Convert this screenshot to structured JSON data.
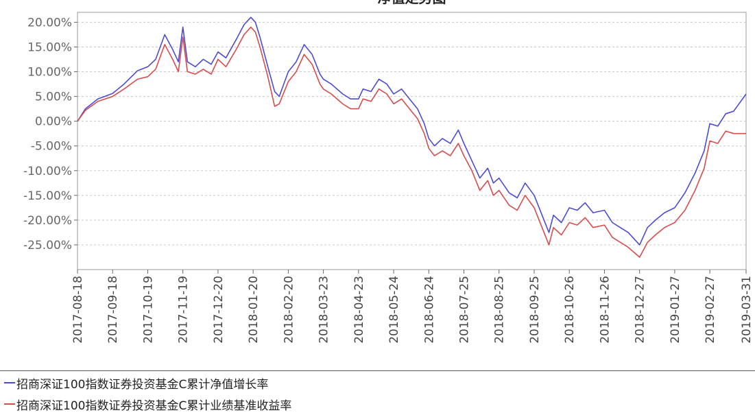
{
  "chart_data": {
    "type": "line",
    "title": "净值走势图",
    "y_unit": "%",
    "ylim": [
      -30,
      22
    ],
    "yticks": [
      20,
      15,
      10,
      5,
      0,
      -5,
      -10,
      -15,
      -20,
      -25
    ],
    "ytick_labels": [
      "20.00%",
      "15.00%",
      "10.00%",
      "5.00%",
      "0.00%",
      "-5.00%",
      "-10.00%",
      "-15.00%",
      "-20.00%",
      "-25.00%"
    ],
    "x_tick_labels": [
      "2017-08-18",
      "2017-09-18",
      "2017-10-19",
      "2017-11-19",
      "2017-12-20",
      "2018-01-20",
      "2018-02-20",
      "2018-03-23",
      "2018-04-23",
      "2018-05-24",
      "2018-06-24",
      "2018-07-25",
      "2018-08-25",
      "2018-09-25",
      "2018-10-26",
      "2018-11-26",
      "2018-12-27",
      "2019-01-27",
      "2019-02-27",
      "2019-03-31"
    ],
    "grid": true,
    "legend_position": "bottom",
    "x_dates": [
      "2017-08-18",
      "2017-08-25",
      "2017-09-05",
      "2017-09-18",
      "2017-09-28",
      "2017-10-10",
      "2017-10-19",
      "2017-10-26",
      "2017-11-03",
      "2017-11-10",
      "2017-11-15",
      "2017-11-19",
      "2017-11-23",
      "2017-11-30",
      "2017-12-07",
      "2017-12-14",
      "2017-12-20",
      "2017-12-27",
      "2018-01-05",
      "2018-01-12",
      "2018-01-18",
      "2018-01-22",
      "2018-01-26",
      "2018-02-02",
      "2018-02-08",
      "2018-02-12",
      "2018-02-20",
      "2018-02-27",
      "2018-03-06",
      "2018-03-13",
      "2018-03-20",
      "2018-03-23",
      "2018-03-30",
      "2018-04-09",
      "2018-04-16",
      "2018-04-23",
      "2018-04-27",
      "2018-05-04",
      "2018-05-11",
      "2018-05-18",
      "2018-05-24",
      "2018-05-31",
      "2018-06-07",
      "2018-06-14",
      "2018-06-20",
      "2018-06-24",
      "2018-06-29",
      "2018-07-06",
      "2018-07-13",
      "2018-07-20",
      "2018-07-25",
      "2018-08-01",
      "2018-08-08",
      "2018-08-15",
      "2018-08-20",
      "2018-08-25",
      "2018-09-03",
      "2018-09-10",
      "2018-09-17",
      "2018-09-25",
      "2018-10-08",
      "2018-10-12",
      "2018-10-19",
      "2018-10-26",
      "2018-11-02",
      "2018-11-09",
      "2018-11-16",
      "2018-11-26",
      "2018-12-03",
      "2018-12-10",
      "2018-12-17",
      "2018-12-27",
      "2019-01-03",
      "2019-01-10",
      "2019-01-18",
      "2019-01-27",
      "2019-02-05",
      "2019-02-14",
      "2019-02-22",
      "2019-02-27",
      "2019-03-06",
      "2019-03-13",
      "2019-03-20",
      "2019-03-31"
    ],
    "series": [
      {
        "name": "招商深证100指数证券投资基金C累计净值增长率",
        "color": "#4a4ad6",
        "values": [
          0.0,
          2.5,
          4.5,
          5.6,
          7.5,
          10.2,
          11.0,
          12.5,
          17.5,
          14.5,
          12.0,
          19.0,
          12.0,
          11.0,
          12.5,
          11.5,
          14.0,
          12.8,
          16.5,
          19.5,
          21.0,
          20.0,
          17.0,
          11.0,
          6.0,
          5.0,
          10.0,
          12.0,
          15.5,
          13.5,
          9.5,
          8.5,
          7.5,
          5.5,
          4.5,
          4.5,
          6.5,
          6.0,
          8.5,
          7.5,
          5.5,
          6.5,
          4.5,
          2.5,
          -0.5,
          -3.5,
          -5.0,
          -3.5,
          -4.5,
          -1.8,
          -4.5,
          -8.0,
          -11.5,
          -9.5,
          -12.5,
          -11.5,
          -14.5,
          -15.5,
          -12.5,
          -15.0,
          -22.5,
          -19.0,
          -20.5,
          -17.5,
          -18.0,
          -16.5,
          -18.5,
          -18.0,
          -20.5,
          -21.5,
          -22.5,
          -25.0,
          -21.5,
          -20.0,
          -18.5,
          -17.5,
          -14.5,
          -10.5,
          -6.0,
          -0.5,
          -1.0,
          1.5,
          2.0,
          5.5
        ]
      },
      {
        "name": "招商深证100指数证券投资基金C累计业绩基准收益率",
        "color": "#d94a4a",
        "values": [
          0.0,
          2.2,
          4.0,
          5.0,
          6.5,
          8.5,
          9.0,
          10.5,
          15.5,
          12.5,
          10.0,
          17.0,
          10.0,
          9.5,
          10.5,
          9.5,
          12.5,
          11.0,
          14.5,
          17.5,
          19.0,
          18.0,
          15.0,
          9.0,
          3.0,
          3.5,
          8.0,
          10.0,
          13.5,
          11.5,
          7.5,
          6.5,
          5.5,
          3.5,
          2.5,
          2.5,
          4.5,
          4.0,
          6.5,
          5.5,
          3.5,
          4.5,
          2.5,
          0.5,
          -2.5,
          -5.5,
          -7.0,
          -6.0,
          -7.0,
          -4.5,
          -7.0,
          -10.0,
          -14.0,
          -12.0,
          -15.0,
          -14.0,
          -17.0,
          -18.0,
          -15.0,
          -17.5,
          -25.0,
          -21.5,
          -23.0,
          -20.5,
          -21.0,
          -19.5,
          -21.5,
          -21.0,
          -23.5,
          -24.5,
          -25.5,
          -27.5,
          -24.5,
          -23.0,
          -21.5,
          -20.5,
          -18.0,
          -14.0,
          -9.5,
          -4.0,
          -4.5,
          -2.0,
          -2.5,
          -2.5
        ]
      }
    ]
  }
}
